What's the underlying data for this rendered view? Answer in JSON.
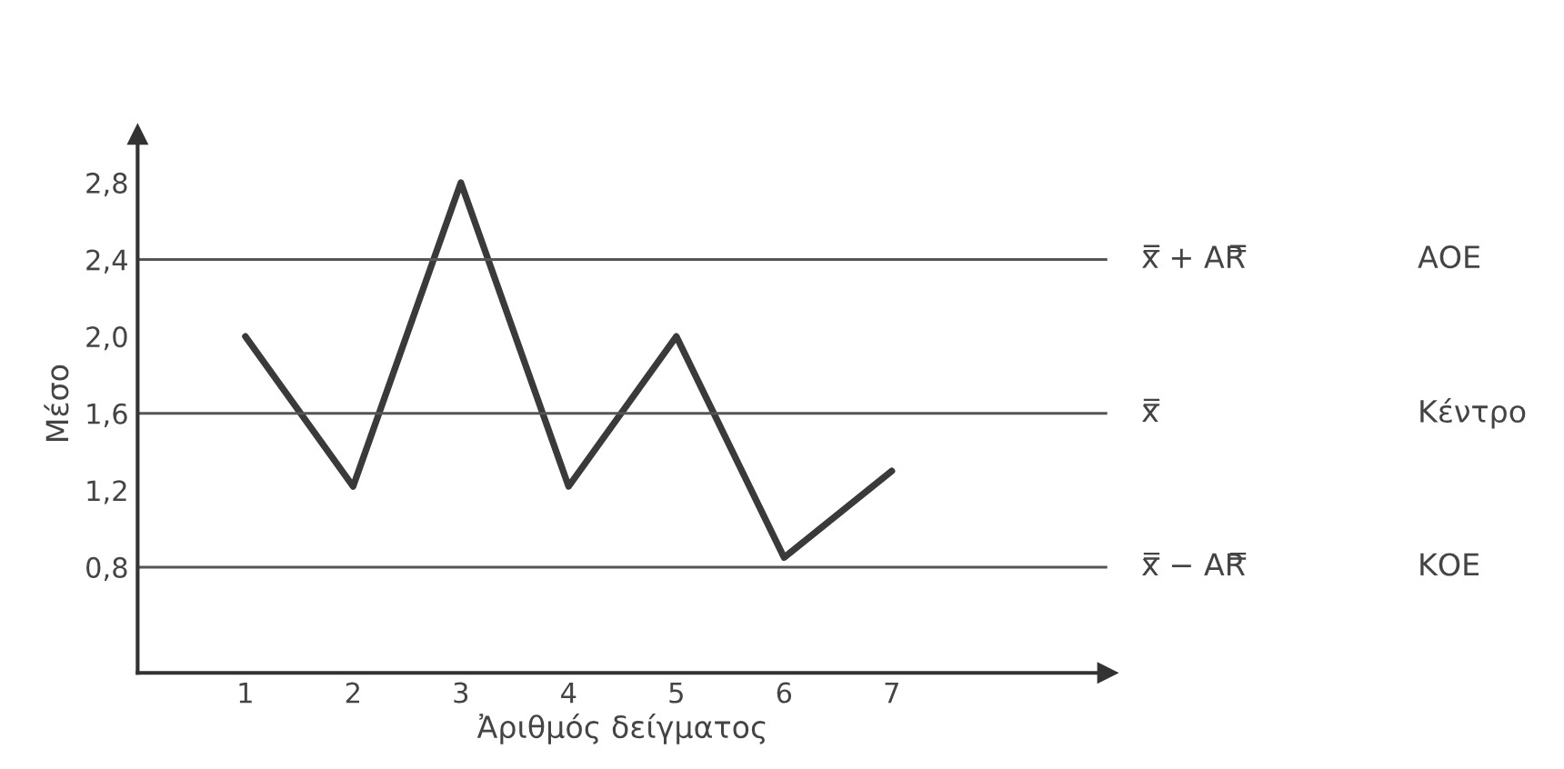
{
  "chart_data": {
    "type": "line",
    "xlabel": "Ἀριθμός δείγματος",
    "ylabel": "Μέσο",
    "x": [
      1,
      2,
      3,
      4,
      5,
      6,
      7
    ],
    "series": [
      {
        "color": "#3a3a3a",
        "values": [
          2.0,
          1.22,
          2.8,
          1.22,
          2.0,
          0.85,
          1.3
        ]
      }
    ],
    "xlim": [
      0,
      9
    ],
    "ylim": [
      0.25,
      3.05
    ],
    "xticks": [
      1,
      2,
      3,
      4,
      5,
      6,
      7
    ],
    "yticks": [
      {
        "value": 0.8,
        "label": "0,8"
      },
      {
        "value": 1.2,
        "label": "1,2"
      },
      {
        "value": 1.6,
        "label": "1,6"
      },
      {
        "value": 2.0,
        "label": "2,0"
      },
      {
        "value": 2.4,
        "label": "2,4"
      },
      {
        "value": 2.8,
        "label": "2,8"
      }
    ],
    "ref_lines": [
      {
        "axis": "y",
        "value": 2.4,
        "label": "x̿ + AR̿",
        "color": "#555555"
      },
      {
        "axis": "y",
        "value": 1.6,
        "label": "x̿",
        "color": "#555555"
      },
      {
        "axis": "y",
        "value": 0.8,
        "label": "x̿ − AR̿",
        "color": "#555555"
      }
    ],
    "annotations": [
      "ΑΟΕ",
      "Κέντρο",
      "ΚΟΕ"
    ],
    "grid": false,
    "marker": "none",
    "line_style": "solid"
  }
}
